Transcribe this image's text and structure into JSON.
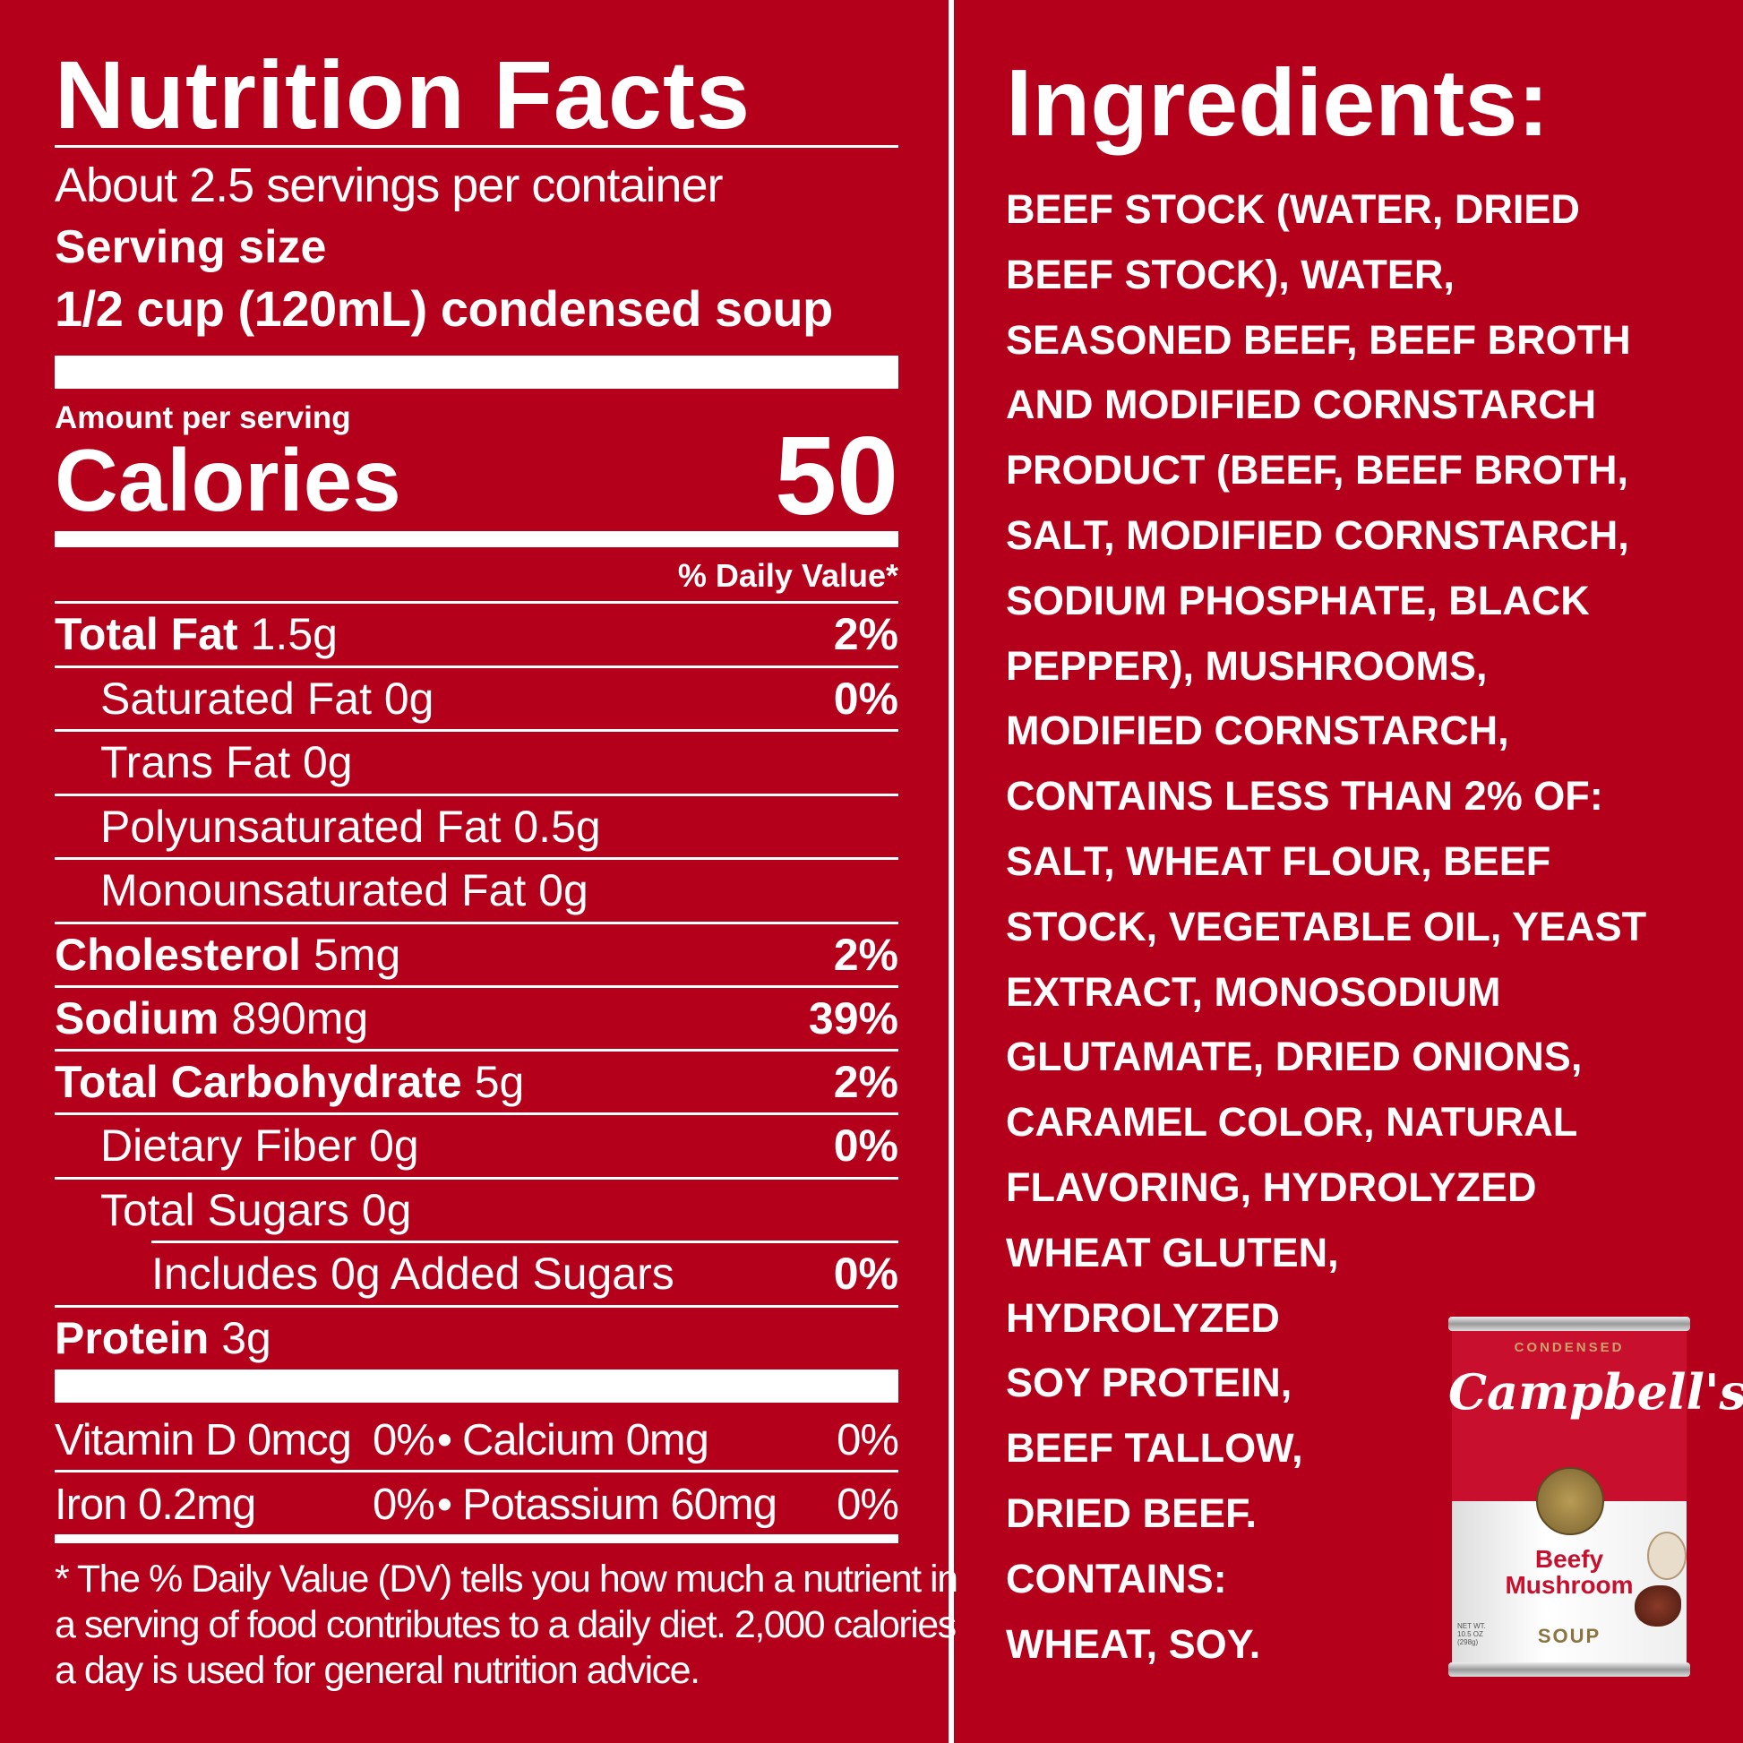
{
  "nutrition": {
    "title": "Nutrition Facts",
    "servings": "About 2.5 servings per container",
    "serving_size_label": "Serving size",
    "serving_size_value": "1/2 cup (120mL) condensed soup",
    "amount_per_serving": "Amount per serving",
    "calories_label": "Calories",
    "calories_value": "50",
    "dv_header": "% Daily Value*",
    "rows": [
      {
        "name": "Total Fat",
        "amount": "1.5g",
        "dv": "2%"
      },
      {
        "name": "",
        "amount": "Saturated Fat 0g",
        "dv": "0%"
      },
      {
        "name": "",
        "amount": "Trans Fat 0g",
        "dv": ""
      },
      {
        "name": "",
        "amount": "Polyunsaturated Fat 0.5g",
        "dv": ""
      },
      {
        "name": "",
        "amount": "Monounsaturated Fat 0g",
        "dv": ""
      },
      {
        "name": "Cholesterol",
        "amount": "5mg",
        "dv": "2%"
      },
      {
        "name": "Sodium",
        "amount": "890mg",
        "dv": "39%"
      },
      {
        "name": "Total Carbohydrate",
        "amount": "5g",
        "dv": "2%"
      },
      {
        "name": "",
        "amount": "Dietary Fiber 0g",
        "dv": "0%"
      },
      {
        "name": "",
        "amount": "Total Sugars 0g",
        "dv": ""
      },
      {
        "name": "",
        "amount": "Includes 0g Added Sugars",
        "dv": "0%"
      },
      {
        "name": "Protein",
        "amount": "3g",
        "dv": ""
      }
    ],
    "vitamins": [
      {
        "a": "Vitamin D 0mcg",
        "a_dv": "0%",
        "b": "Calcium 0mg",
        "b_dv": "0%"
      },
      {
        "a": "Iron 0.2mg",
        "a_dv": "0%",
        "b": "Potassium 60mg",
        "b_dv": "0%"
      }
    ],
    "bullet": "•",
    "footnote": [
      "* The % Daily Value (DV) tells you how much a nutrient in",
      "a serving of food contributes to a daily diet. 2,000 calories",
      "a day is used for general nutrition advice."
    ]
  },
  "ingredients": {
    "title": "Ingredients:",
    "lines": [
      "BEEF STOCK (WATER, DRIED",
      "BEEF STOCK), WATER,",
      "SEASONED BEEF, BEEF BROTH",
      "AND MODIFIED CORNSTARCH",
      "PRODUCT (BEEF, BEEF BROTH,",
      "SALT, MODIFIED CORNSTARCH,",
      "SODIUM PHOSPHATE, BLACK",
      "PEPPER), MUSHROOMS,",
      "MODIFIED CORNSTARCH,",
      "CONTAINS LESS THAN 2% OF:",
      "SALT, WHEAT FLOUR, BEEF",
      "STOCK, VEGETABLE OIL, YEAST",
      "EXTRACT, MONOSODIUM",
      "GLUTAMATE, DRIED ONIONS,",
      "CARAMEL COLOR, NATURAL",
      "FLAVORING, HYDROLYZED",
      "WHEAT GLUTEN,",
      "HYDROLYZED",
      "SOY PROTEIN,",
      "BEEF TALLOW,",
      "DRIED BEEF.",
      "CONTAINS:",
      "WHEAT, SOY."
    ]
  },
  "can": {
    "top_text": "CONDENSED",
    "brand": "Campbell's",
    "variety_line1": "Beefy",
    "variety_line2": "Mushroom",
    "type": "SOUP",
    "net_wt": "NET WT. 10.5 OZ (298g)"
  },
  "colors": {
    "background": "#b5001b",
    "text": "#ffffff",
    "can_red": "#c8102e"
  }
}
